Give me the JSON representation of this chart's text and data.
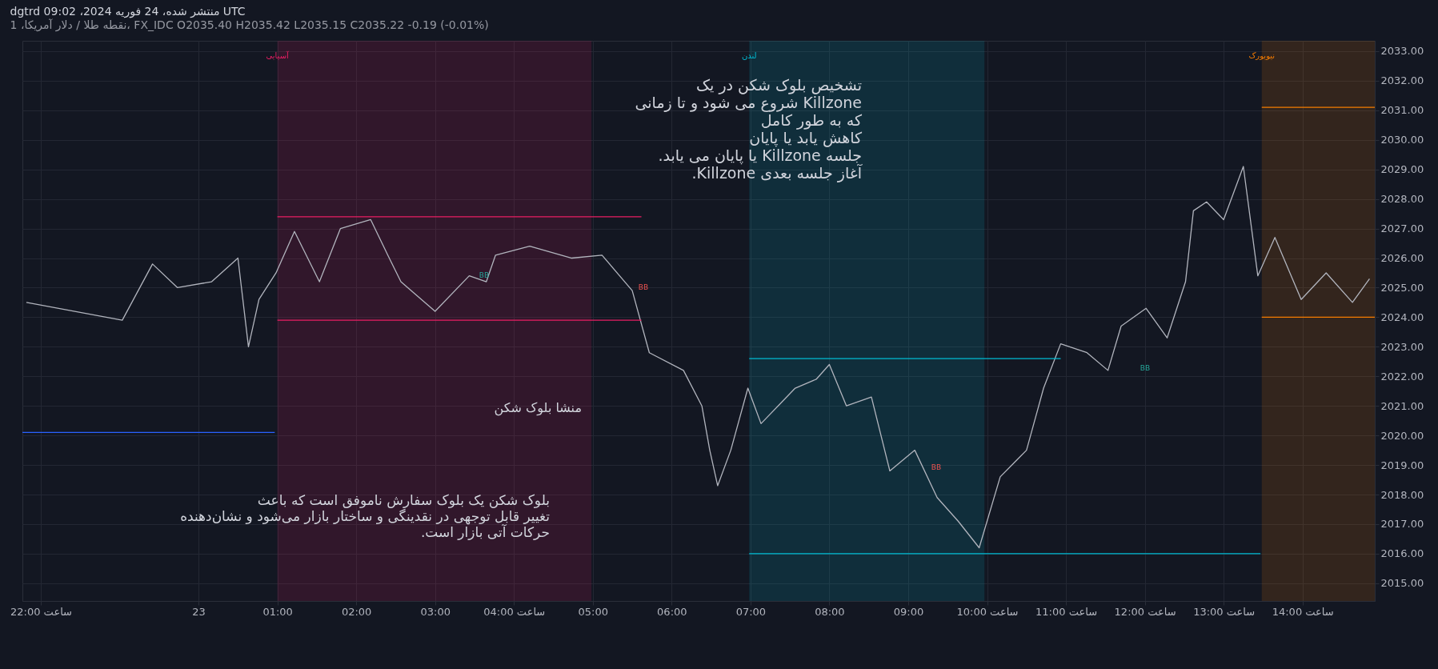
{
  "chart_data": {
    "type": "line",
    "title": "dgtrd منتشر شده، 24 فوریه 2024، 09:02 UTC",
    "subtitle": "نقطه طلا / دلار آمریکا، 1، FX_IDC O2035.40 H2035.42 L2035.15 C2035.22 -0.19 (-0.01%)",
    "xlim": [
      "2024-02-22T21:46",
      "2024-02-23T14:55"
    ],
    "ylim": [
      2014.4,
      2033.35
    ],
    "xticks": [
      {
        "value": "2024-02-22T22:00",
        "label": "ساعت 22:00"
      },
      {
        "value": "2024-02-23T00:00",
        "label": "23"
      },
      {
        "value": "2024-02-23T01:00",
        "label": "01:00"
      },
      {
        "value": "2024-02-23T02:00",
        "label": "02:00"
      },
      {
        "value": "2024-02-23T03:00",
        "label": "03:00"
      },
      {
        "value": "2024-02-23T04:00",
        "label": "ساعت 04:00"
      },
      {
        "value": "2024-02-23T05:00",
        "label": "05:00"
      },
      {
        "value": "2024-02-23T06:00",
        "label": "06:00"
      },
      {
        "value": "2024-02-23T07:00",
        "label": "07:00"
      },
      {
        "value": "2024-02-23T08:00",
        "label": "08:00"
      },
      {
        "value": "2024-02-23T09:00",
        "label": "09:00"
      },
      {
        "value": "2024-02-23T10:00",
        "label": "ساعت 10:00"
      },
      {
        "value": "2024-02-23T11:00",
        "label": "ساعت 11:00"
      },
      {
        "value": "2024-02-23T12:00",
        "label": "ساعت 12:00"
      },
      {
        "value": "2024-02-23T13:00",
        "label": "ساعت 13:00"
      },
      {
        "value": "2024-02-23T14:00",
        "label": "ساعت 14:00"
      }
    ],
    "yticks": [
      {
        "value": 2015,
        "label": "2015.00"
      },
      {
        "value": 2016,
        "label": "2016.00"
      },
      {
        "value": 2017,
        "label": "2017.00"
      },
      {
        "value": 2018,
        "label": "2018.00"
      },
      {
        "value": 2019,
        "label": "2019.00"
      },
      {
        "value": 2020,
        "label": "2020.00"
      },
      {
        "value": 2021,
        "label": "2021.00"
      },
      {
        "value": 2022,
        "label": "2022.00"
      },
      {
        "value": 2023,
        "label": "2023.00"
      },
      {
        "value": 2024,
        "label": "2024.00"
      },
      {
        "value": 2025,
        "label": "2025.00"
      },
      {
        "value": 2026,
        "label": "2026.00"
      },
      {
        "value": 2027,
        "label": "2027.00"
      },
      {
        "value": 2028,
        "label": "2028.00"
      },
      {
        "value": 2029,
        "label": "2029.00"
      },
      {
        "value": 2030,
        "label": "2030.00"
      },
      {
        "value": 2031,
        "label": "2031.00"
      },
      {
        "value": 2032,
        "label": "2032.00"
      },
      {
        "value": 2033,
        "label": "2033.00"
      }
    ],
    "grid": true,
    "series": [
      {
        "color": "#b2b5be",
        "x": [
          "2024-02-22T21:49",
          "2024-02-22T23:02",
          "2024-02-22T23:25",
          "2024-02-22T23:44",
          "2024-02-23T00:10",
          "2024-02-23T00:30",
          "2024-02-23T00:38",
          "2024-02-23T00:46",
          "2024-02-23T00:59",
          "2024-02-23T01:13",
          "2024-02-23T01:32",
          "2024-02-23T01:48",
          "2024-02-23T02:11",
          "2024-02-23T02:24",
          "2024-02-23T02:34",
          "2024-02-23T03:00",
          "2024-02-23T03:26",
          "2024-02-23T03:39",
          "2024-02-23T03:46",
          "2024-02-23T04:12",
          "2024-02-23T04:44",
          "2024-02-23T05:07",
          "2024-02-23T05:30",
          "2024-02-23T05:43",
          "2024-02-23T06:09",
          "2024-02-23T06:23",
          "2024-02-23T06:29",
          "2024-02-23T06:35",
          "2024-02-23T06:45",
          "2024-02-23T06:58",
          "2024-02-23T07:08",
          "2024-02-23T07:21",
          "2024-02-23T07:34",
          "2024-02-23T07:50",
          "2024-02-23T08:00",
          "2024-02-23T08:13",
          "2024-02-23T08:32",
          "2024-02-23T08:46",
          "2024-02-23T09:05",
          "2024-02-23T09:22",
          "2024-02-23T09:38",
          "2024-02-23T09:54",
          "2024-02-23T10:10",
          "2024-02-23T10:30",
          "2024-02-23T10:43",
          "2024-02-23T10:56",
          "2024-02-23T11:16",
          "2024-02-23T11:32",
          "2024-02-23T11:42",
          "2024-02-23T12:01",
          "2024-02-23T12:17",
          "2024-02-23T12:31",
          "2024-02-23T12:37",
          "2024-02-23T12:47",
          "2024-02-23T13:00",
          "2024-02-23T13:15",
          "2024-02-23T13:26",
          "2024-02-23T13:39",
          "2024-02-23T13:59",
          "2024-02-23T14:18",
          "2024-02-23T14:38",
          "2024-02-23T14:51"
        ],
        "values": [
          2024.5,
          2023.9,
          2025.8,
          2025.0,
          2025.2,
          2026.0,
          2023.0,
          2024.6,
          2025.5,
          2026.9,
          2025.2,
          2027.0,
          2027.3,
          2026.1,
          2025.2,
          2024.2,
          2025.4,
          2025.2,
          2026.1,
          2026.4,
          2026.0,
          2026.1,
          2024.9,
          2022.8,
          2022.2,
          2021.0,
          2019.5,
          2018.3,
          2019.5,
          2021.6,
          2020.4,
          2021.0,
          2021.6,
          2021.9,
          2022.4,
          2021.0,
          2021.3,
          2018.8,
          2019.5,
          2017.9,
          2017.1,
          2016.2,
          2018.6,
          2019.5,
          2021.6,
          2023.1,
          2022.8,
          2022.2,
          2023.7,
          2024.3,
          2023.3,
          2025.2,
          2027.6,
          2027.9,
          2027.3,
          2029.1,
          2025.4,
          2026.7,
          2024.6,
          2025.5,
          2024.5,
          2025.3
        ]
      },
      {
        "color": "#e91e63",
        "x": [
          "2024-02-23T01:00",
          "2024-02-23T05:37"
        ],
        "values": [
          2027.4,
          2027.4
        ]
      },
      {
        "color": "#e91e63",
        "x": [
          "2024-02-23T01:00",
          "2024-02-23T05:37"
        ],
        "values": [
          2023.9,
          2023.9
        ]
      },
      {
        "color": "#00bcd4",
        "x": [
          "2024-02-23T06:59",
          "2024-02-23T10:56"
        ],
        "values": [
          2022.6,
          2022.6
        ]
      },
      {
        "color": "#00bcd4",
        "x": [
          "2024-02-23T06:59",
          "2024-02-23T13:28"
        ],
        "values": [
          2016.0,
          2016.0
        ]
      },
      {
        "color": "#f57c00",
        "x": [
          "2024-02-23T13:29",
          "2024-02-23T14:55"
        ],
        "values": [
          2031.1,
          2031.1
        ]
      },
      {
        "color": "#f57c00",
        "x": [
          "2024-02-23T13:29",
          "2024-02-23T14:55"
        ],
        "values": [
          2024.0,
          2024.0
        ]
      },
      {
        "color": "#2962ff",
        "x": [
          "2024-02-22T21:46",
          "2024-02-23T00:58"
        ],
        "values": [
          2020.1,
          2020.1
        ]
      }
    ],
    "bands": [
      {
        "axis": "x",
        "from": "2024-02-23T01:00",
        "to": "2024-02-23T04:59",
        "label": "آسیایی",
        "color": "#e91e63"
      },
      {
        "axis": "x",
        "from": "2024-02-23T06:59",
        "to": "2024-02-23T09:58",
        "label": "لندن",
        "color": "#00bcd4"
      },
      {
        "axis": "x",
        "from": "2024-02-23T13:29",
        "to": "2024-02-23T14:55",
        "label": "نیویورک",
        "color": "#f57c00"
      }
    ],
    "annotations": [
      "تشخیص بلوک شکن در یک\nKillzone شروع می شود و تا زمانی\nکه به طور کامل\nکاهش یابد یا پایان\nجلسه Killzone یا پایان می یابد.\nآغاز جلسه بعدی Killzone.",
      "منشا بلوک شکن",
      "بلوک شکن یک بلوک سفارش ناموفق است که باعث\nتغییر قابل توجهی در نقدینگی و ساختار بازار می‌شود و نشان‌دهنده\nحرکات آتی بازار است.",
      "BB",
      "BB",
      "BB",
      "BB"
    ]
  }
}
